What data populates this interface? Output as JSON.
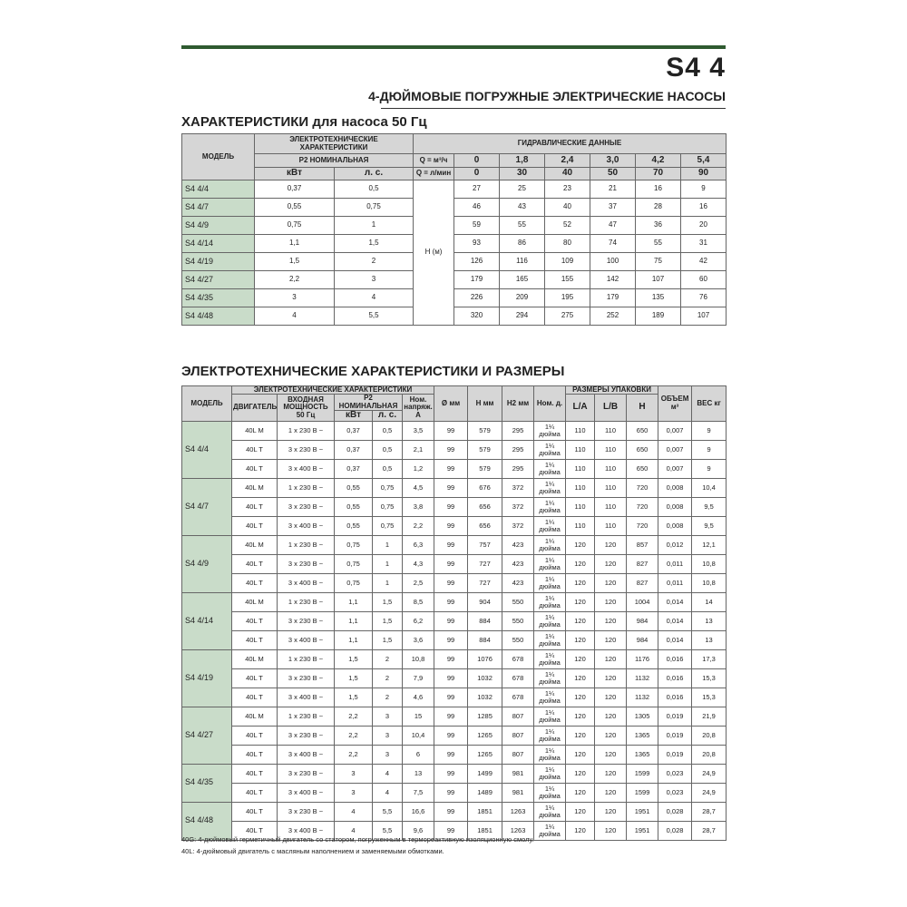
{
  "header": {
    "title": "S4 4",
    "subtitle": "4-ДЮЙМОВЫЕ ПОГРУЖНЫЕ ЭЛЕКТРИЧЕСКИЕ НАСОСЫ"
  },
  "section1": {
    "title": "ХАРАКТЕРИСТИКИ для насоса 50 Гц"
  },
  "table1": {
    "model": "МОДЕЛЬ",
    "electrical": "ЭЛЕКТРОТЕХНИЧЕСКИЕ ХАРАКТЕРИСТИКИ",
    "hydraulic": "ГИДРАВЛИЧЕСКИЕ ДАННЫЕ",
    "p2": "P2 НОМИНАЛЬНАЯ",
    "kw": "кВт",
    "hp": "л. с.",
    "q_m3h_label": "Q = м³/ч",
    "q_lmin_label": "Q = л/мин",
    "q_m3h": [
      "0",
      "1,8",
      "2,4",
      "3,0",
      "4,2",
      "5,4"
    ],
    "q_lmin": [
      "0",
      "30",
      "40",
      "50",
      "70",
      "90"
    ],
    "h_label": "H (м)",
    "rows": [
      [
        "S4 4/4",
        "0,37",
        "0,5",
        "27",
        "25",
        "23",
        "21",
        "16",
        "9"
      ],
      [
        "S4 4/7",
        "0,55",
        "0,75",
        "46",
        "43",
        "40",
        "37",
        "28",
        "16"
      ],
      [
        "S4 4/9",
        "0,75",
        "1",
        "59",
        "55",
        "52",
        "47",
        "36",
        "20"
      ],
      [
        "S4 4/14",
        "1,1",
        "1,5",
        "93",
        "86",
        "80",
        "74",
        "55",
        "31"
      ],
      [
        "S4 4/19",
        "1,5",
        "2",
        "126",
        "116",
        "109",
        "100",
        "75",
        "42"
      ],
      [
        "S4 4/27",
        "2,2",
        "3",
        "179",
        "165",
        "155",
        "142",
        "107",
        "60"
      ],
      [
        "S4 4/35",
        "3",
        "4",
        "226",
        "209",
        "195",
        "179",
        "135",
        "76"
      ],
      [
        "S4 4/48",
        "4",
        "5,5",
        "320",
        "294",
        "275",
        "252",
        "189",
        "107"
      ]
    ]
  },
  "section2": {
    "title": "ЭЛЕКТРОТЕХНИЧЕСКИЕ ХАРАКТЕРИСТИКИ И РАЗМЕРЫ"
  },
  "table2": {
    "model": "МОДЕЛЬ",
    "electrical": "ЭЛЕКТРОТЕХНИЧЕСКИЕ ХАРАКТЕРИСТИКИ",
    "motor": "ДВИГАТЕЛЬ",
    "input_power": "ВХОДНАЯ МОЩНОСТЬ 50 Гц",
    "p2": "P2 НОМИНАЛЬНАЯ",
    "kw": "кВт",
    "hp": "л. с.",
    "current": "Ном. напряж. А",
    "diameter": "Ø мм",
    "height": "H мм",
    "height2": "H2 мм",
    "connection": "Ном. д.",
    "packaging": "РАЗМЕРЫ УПАКОВКИ",
    "pack_la": "L/A",
    "pack_lb": "L/B",
    "pack_h": "H",
    "volume": "ОБЪЕМ м³",
    "weight": "ВЕС кг",
    "groups": [
      {
        "model": "S4 4/4",
        "rows": [
          [
            "40L M",
            "1 x 230 B ~",
            "0,37",
            "0,5",
            "3,5",
            "99",
            "579",
            "295",
            "1¼ дюйма",
            "110",
            "110",
            "650",
            "0,007",
            "9"
          ],
          [
            "40L T",
            "3 x 230 B ~",
            "0,37",
            "0,5",
            "2,1",
            "99",
            "579",
            "295",
            "1¼ дюйма",
            "110",
            "110",
            "650",
            "0,007",
            "9"
          ],
          [
            "40L T",
            "3 x 400 B ~",
            "0,37",
            "0,5",
            "1,2",
            "99",
            "579",
            "295",
            "1¼ дюйма",
            "110",
            "110",
            "650",
            "0,007",
            "9"
          ]
        ]
      },
      {
        "model": "S4 4/7",
        "rows": [
          [
            "40L M",
            "1 x 230 B ~",
            "0,55",
            "0,75",
            "4,5",
            "99",
            "676",
            "372",
            "1¼ дюйма",
            "110",
            "110",
            "720",
            "0,008",
            "10,4"
          ],
          [
            "40L T",
            "3 x 230 B ~",
            "0,55",
            "0,75",
            "3,8",
            "99",
            "656",
            "372",
            "1¼ дюйма",
            "110",
            "110",
            "720",
            "0,008",
            "9,5"
          ],
          [
            "40L T",
            "3 x 400 B ~",
            "0,55",
            "0,75",
            "2,2",
            "99",
            "656",
            "372",
            "1¼ дюйма",
            "110",
            "110",
            "720",
            "0,008",
            "9,5"
          ]
        ]
      },
      {
        "model": "S4 4/9",
        "rows": [
          [
            "40L M",
            "1 x 230 B ~",
            "0,75",
            "1",
            "6,3",
            "99",
            "757",
            "423",
            "1¼ дюйма",
            "120",
            "120",
            "857",
            "0,012",
            "12,1"
          ],
          [
            "40L T",
            "3 x 230 B ~",
            "0,75",
            "1",
            "4,3",
            "99",
            "727",
            "423",
            "1¼ дюйма",
            "120",
            "120",
            "827",
            "0,011",
            "10,8"
          ],
          [
            "40L T",
            "3 x 400 B ~",
            "0,75",
            "1",
            "2,5",
            "99",
            "727",
            "423",
            "1¼ дюйма",
            "120",
            "120",
            "827",
            "0,011",
            "10,8"
          ]
        ]
      },
      {
        "model": "S4 4/14",
        "rows": [
          [
            "40L M",
            "1 x 230 B ~",
            "1,1",
            "1,5",
            "8,5",
            "99",
            "904",
            "550",
            "1¼ дюйма",
            "120",
            "120",
            "1004",
            "0,014",
            "14"
          ],
          [
            "40L T",
            "3 x 230 B ~",
            "1,1",
            "1,5",
            "6,2",
            "99",
            "884",
            "550",
            "1¼ дюйма",
            "120",
            "120",
            "984",
            "0,014",
            "13"
          ],
          [
            "40L T",
            "3 x 400 B ~",
            "1,1",
            "1,5",
            "3,6",
            "99",
            "884",
            "550",
            "1¼ дюйма",
            "120",
            "120",
            "984",
            "0,014",
            "13"
          ]
        ]
      },
      {
        "model": "S4 4/19",
        "rows": [
          [
            "40L M",
            "1 x 230 B ~",
            "1,5",
            "2",
            "10,8",
            "99",
            "1076",
            "678",
            "1¼ дюйма",
            "120",
            "120",
            "1176",
            "0,016",
            "17,3"
          ],
          [
            "40L T",
            "3 x 230 B ~",
            "1,5",
            "2",
            "7,9",
            "99",
            "1032",
            "678",
            "1¼ дюйма",
            "120",
            "120",
            "1132",
            "0,016",
            "15,3"
          ],
          [
            "40L T",
            "3 x 400 B ~",
            "1,5",
            "2",
            "4,6",
            "99",
            "1032",
            "678",
            "1¼ дюйма",
            "120",
            "120",
            "1132",
            "0,016",
            "15,3"
          ]
        ]
      },
      {
        "model": "S4 4/27",
        "rows": [
          [
            "40L M",
            "1 x 230 B ~",
            "2,2",
            "3",
            "15",
            "99",
            "1285",
            "807",
            "1¼ дюйма",
            "120",
            "120",
            "1305",
            "0,019",
            "21,9"
          ],
          [
            "40L T",
            "3 x 230 B ~",
            "2,2",
            "3",
            "10,4",
            "99",
            "1265",
            "807",
            "1¼ дюйма",
            "120",
            "120",
            "1365",
            "0,019",
            "20,8"
          ],
          [
            "40L T",
            "3 x 400 B ~",
            "2,2",
            "3",
            "6",
            "99",
            "1265",
            "807",
            "1¼ дюйма",
            "120",
            "120",
            "1365",
            "0,019",
            "20,8"
          ]
        ]
      },
      {
        "model": "S4 4/35",
        "rows": [
          [
            "40L T",
            "3 x 230 B ~",
            "3",
            "4",
            "13",
            "99",
            "1499",
            "981",
            "1¼ дюйма",
            "120",
            "120",
            "1599",
            "0,023",
            "24,9"
          ],
          [
            "40L T",
            "3 x 400 B ~",
            "3",
            "4",
            "7,5",
            "99",
            "1489",
            "981",
            "1¼ дюйма",
            "120",
            "120",
            "1599",
            "0,023",
            "24,9"
          ]
        ]
      },
      {
        "model": "S4 4/48",
        "rows": [
          [
            "40L T",
            "3 x 230 B ~",
            "4",
            "5,5",
            "16,6",
            "99",
            "1851",
            "1263",
            "1¼ дюйма",
            "120",
            "120",
            "1951",
            "0,028",
            "28,7"
          ],
          [
            "40L T",
            "3 x 400 B ~",
            "4",
            "5,5",
            "9,6",
            "99",
            "1851",
            "1263",
            "1¼ дюйма",
            "120",
            "120",
            "1951",
            "0,028",
            "28,7"
          ]
        ]
      }
    ]
  },
  "footnotes": [
    "40G: 4-дюймовый герметичный двигатель со статором, погруженным в термореактивную изоляционную смолу.",
    "40L: 4-дюймовый двигатель с масляным наполнением и заменяемыми обмотками."
  ]
}
